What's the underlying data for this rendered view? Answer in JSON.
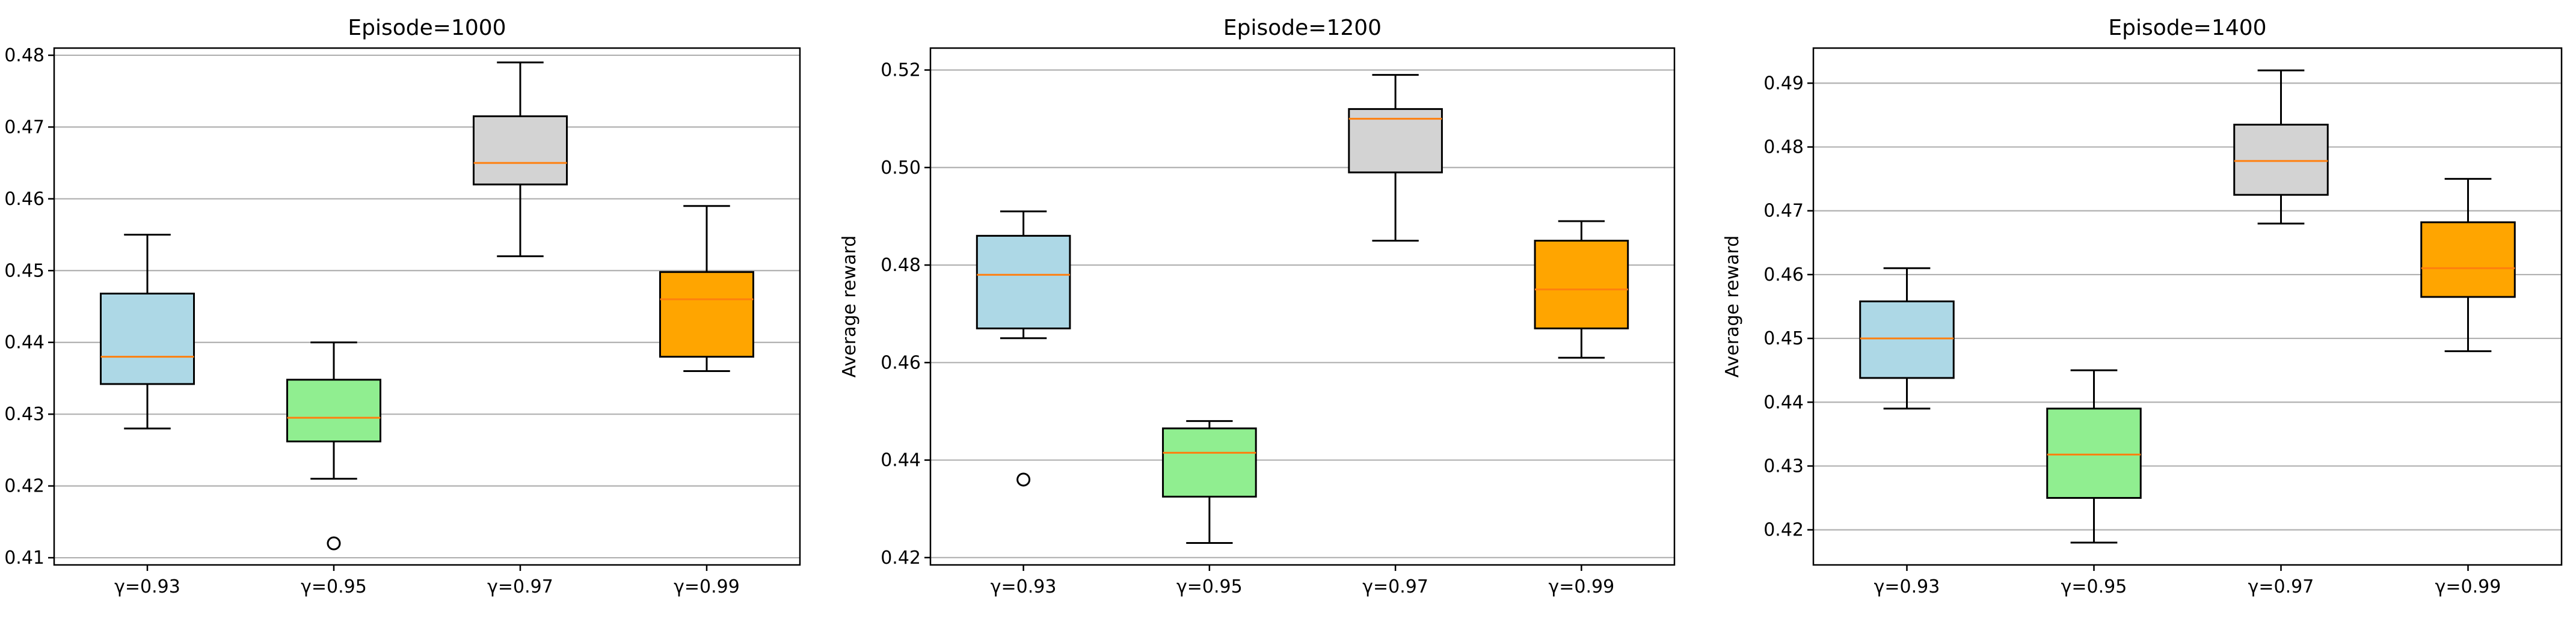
{
  "figure": {
    "colors": {
      "box_fills": [
        "#add8e6",
        "#90ee90",
        "#d3d3d3",
        "#ffa500"
      ],
      "median": "#ff7f0e",
      "grid": "#b0b0b0",
      "edge": "#000000"
    }
  },
  "chart_data": [
    {
      "type": "box",
      "title": "Episode=1000",
      "xlabel": "",
      "ylabel": "Average reward",
      "categories": [
        "γ=0.93",
        "γ=0.95",
        "γ=0.97",
        "γ=0.99"
      ],
      "ylim": [
        0.409,
        0.481
      ],
      "yticks": [
        0.41,
        0.42,
        0.43,
        0.44,
        0.45,
        0.46,
        0.47,
        0.48
      ],
      "ytick_labels": [
        "0.41",
        "0.42",
        "0.43",
        "0.44",
        "0.45",
        "0.46",
        "0.47",
        "0.48"
      ],
      "grid": "y",
      "boxes": [
        {
          "whislo": 0.428,
          "q1": 0.4342,
          "med": 0.438,
          "q3": 0.4468,
          "whishi": 0.455,
          "fliers": []
        },
        {
          "whislo": 0.421,
          "q1": 0.4262,
          "med": 0.4295,
          "q3": 0.4348,
          "whishi": 0.44,
          "fliers": [
            0.412
          ]
        },
        {
          "whislo": 0.452,
          "q1": 0.462,
          "med": 0.465,
          "q3": 0.4715,
          "whishi": 0.479,
          "fliers": []
        },
        {
          "whislo": 0.436,
          "q1": 0.438,
          "med": 0.446,
          "q3": 0.4498,
          "whishi": 0.459,
          "fliers": []
        }
      ]
    },
    {
      "type": "box",
      "title": "Episode=1200",
      "xlabel": "",
      "ylabel": "Average reward",
      "categories": [
        "γ=0.93",
        "γ=0.95",
        "γ=0.97",
        "γ=0.99"
      ],
      "ylim": [
        0.4185,
        0.5245
      ],
      "yticks": [
        0.42,
        0.44,
        0.46,
        0.48,
        0.5,
        0.52
      ],
      "ytick_labels": [
        "0.42",
        "0.44",
        "0.46",
        "0.48",
        "0.50",
        "0.52"
      ],
      "grid": "y",
      "boxes": [
        {
          "whislo": 0.465,
          "q1": 0.467,
          "med": 0.478,
          "q3": 0.486,
          "whishi": 0.491,
          "fliers": [
            0.436
          ]
        },
        {
          "whislo": 0.423,
          "q1": 0.4325,
          "med": 0.4415,
          "q3": 0.4465,
          "whishi": 0.448,
          "fliers": []
        },
        {
          "whislo": 0.485,
          "q1": 0.499,
          "med": 0.51,
          "q3": 0.512,
          "whishi": 0.519,
          "fliers": []
        },
        {
          "whislo": 0.461,
          "q1": 0.467,
          "med": 0.475,
          "q3": 0.485,
          "whishi": 0.489,
          "fliers": []
        }
      ]
    },
    {
      "type": "box",
      "title": "Episode=1400",
      "xlabel": "",
      "ylabel": "Average reward",
      "categories": [
        "γ=0.93",
        "γ=0.95",
        "γ=0.97",
        "γ=0.99"
      ],
      "ylim": [
        0.4145,
        0.4955
      ],
      "yticks": [
        0.42,
        0.43,
        0.44,
        0.45,
        0.46,
        0.47,
        0.48,
        0.49
      ],
      "ytick_labels": [
        "0.42",
        "0.43",
        "0.44",
        "0.45",
        "0.46",
        "0.47",
        "0.48",
        "0.49"
      ],
      "grid": "y",
      "boxes": [
        {
          "whislo": 0.439,
          "q1": 0.4438,
          "med": 0.45,
          "q3": 0.4558,
          "whishi": 0.461,
          "fliers": []
        },
        {
          "whislo": 0.418,
          "q1": 0.425,
          "med": 0.4318,
          "q3": 0.439,
          "whishi": 0.445,
          "fliers": []
        },
        {
          "whislo": 0.468,
          "q1": 0.4725,
          "med": 0.4778,
          "q3": 0.4835,
          "whishi": 0.492,
          "fliers": []
        },
        {
          "whislo": 0.448,
          "q1": 0.4565,
          "med": 0.461,
          "q3": 0.4682,
          "whishi": 0.475,
          "fliers": []
        }
      ]
    }
  ]
}
